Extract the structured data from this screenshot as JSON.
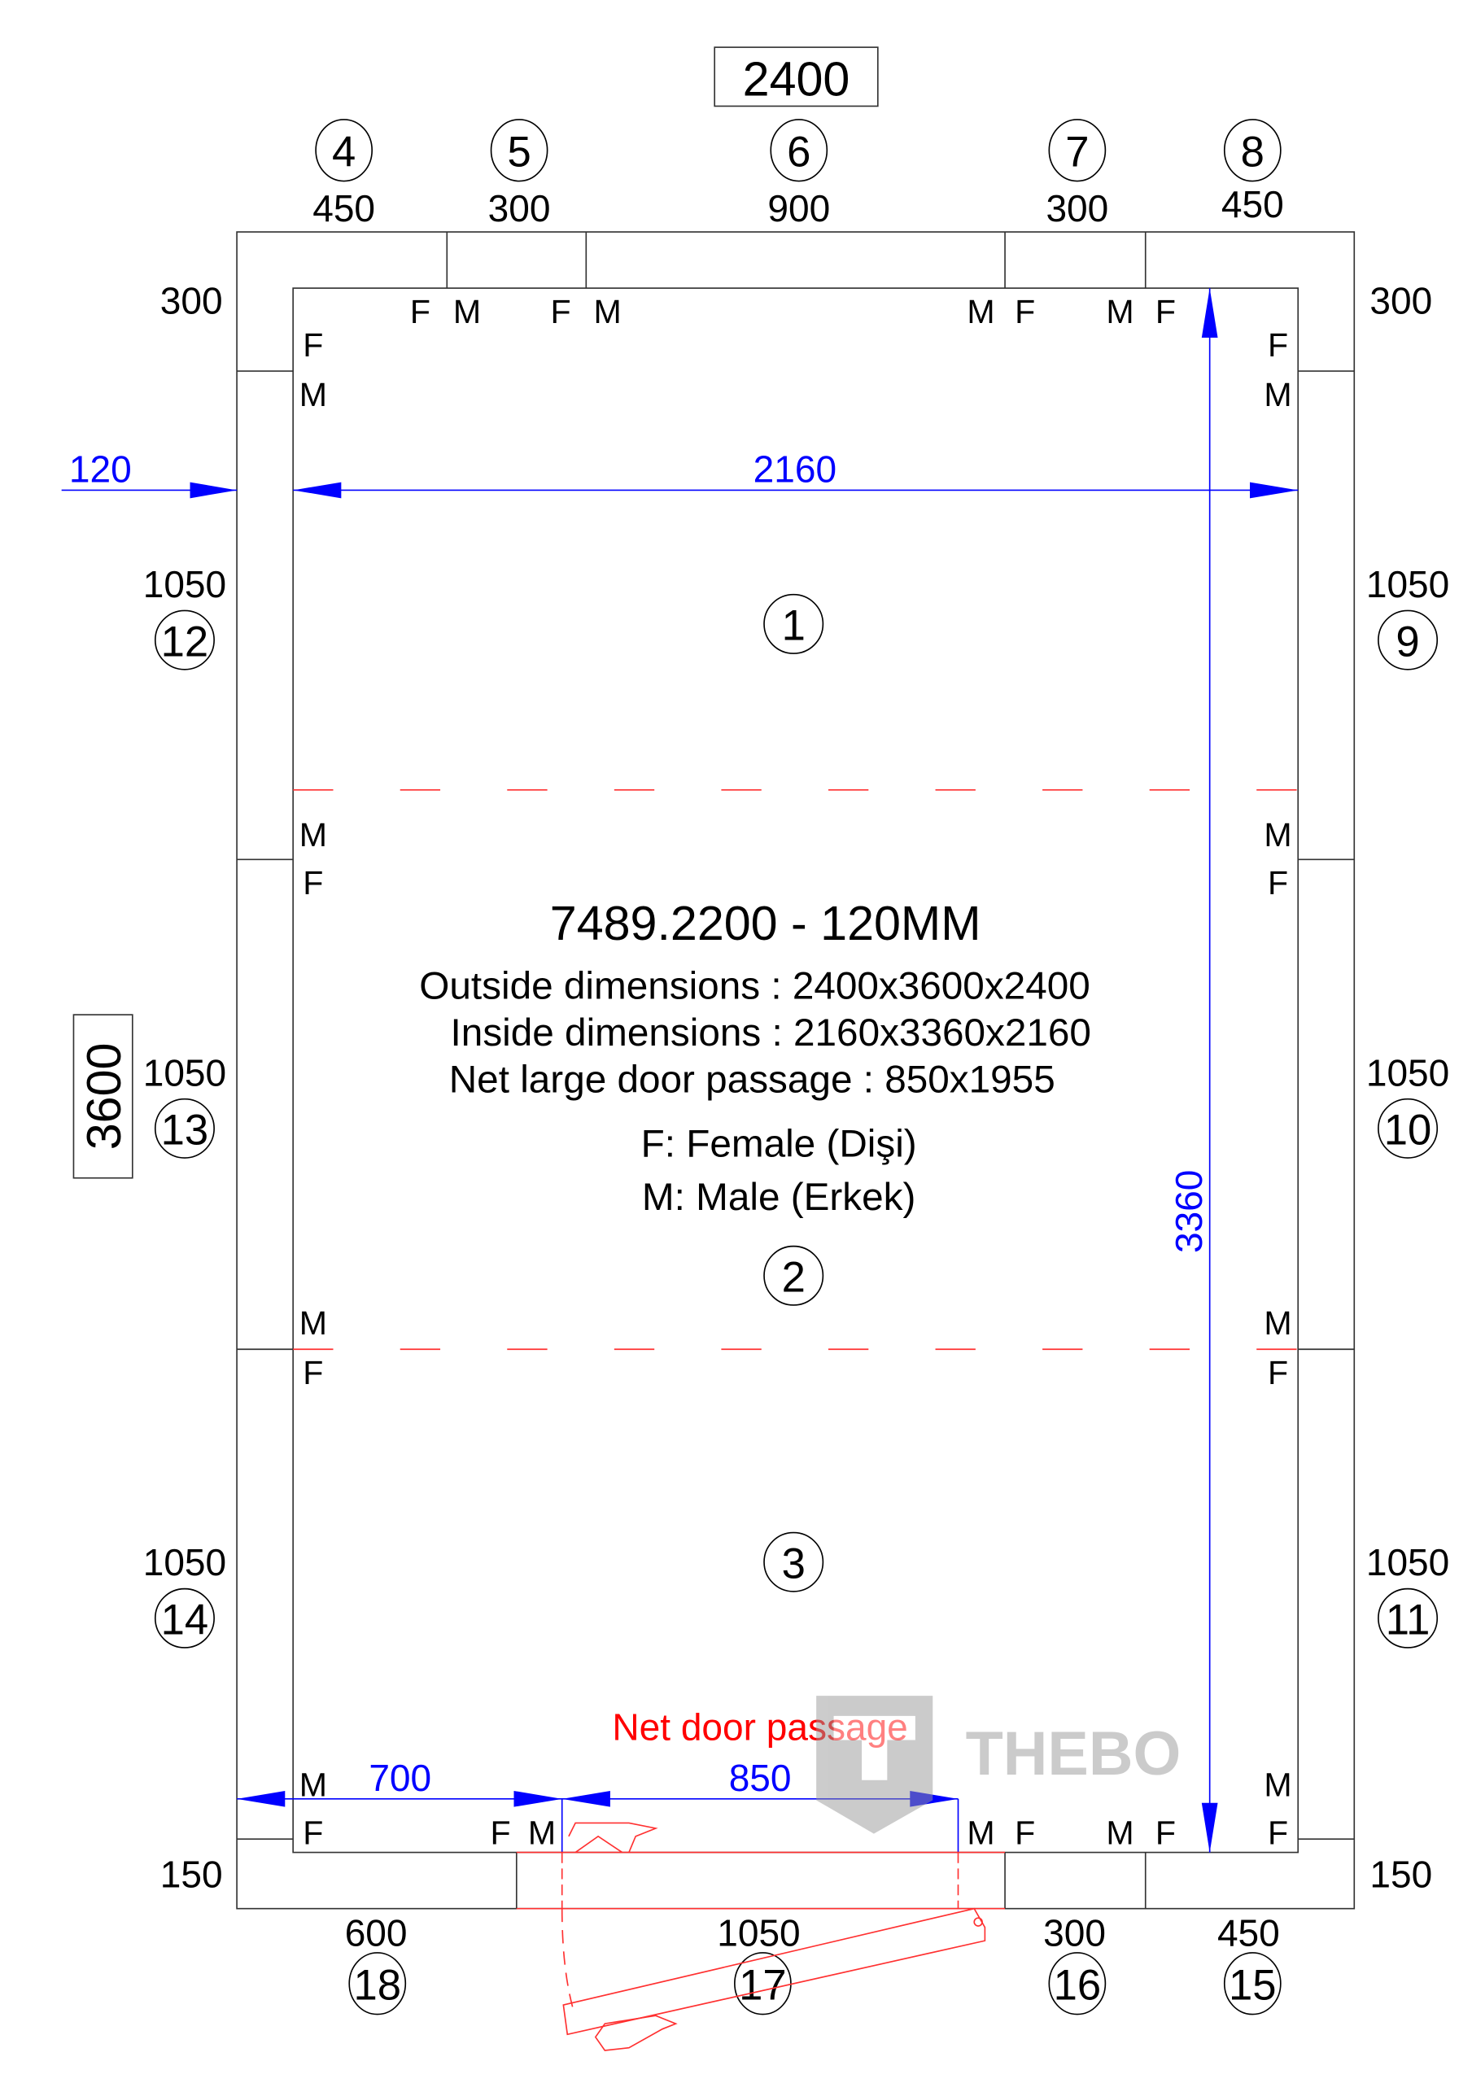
{
  "overall_width_label": "2400",
  "overall_depth_label": "3600",
  "top_panels": [
    {
      "id": "4",
      "width": "450"
    },
    {
      "id": "5",
      "width": "300"
    },
    {
      "id": "6",
      "width": "900"
    },
    {
      "id": "7",
      "width": "300"
    },
    {
      "id": "8",
      "width": "450"
    }
  ],
  "bottom_panels": [
    {
      "id": "18",
      "width": "600"
    },
    {
      "id": "17",
      "width": "1050"
    },
    {
      "id": "16",
      "width": "300"
    },
    {
      "id": "15",
      "width": "450"
    }
  ],
  "left_panels": [
    {
      "id": "12",
      "length": "1050"
    },
    {
      "id": "13",
      "length": "1050"
    },
    {
      "id": "14",
      "length": "1050"
    }
  ],
  "right_panels": [
    {
      "id": "9",
      "length": "1050"
    },
    {
      "id": "10",
      "length": "1050"
    },
    {
      "id": "11",
      "length": "1050"
    }
  ],
  "corner_labels": {
    "top_left": "300",
    "top_right": "300",
    "bottom_left": "150",
    "bottom_right": "150"
  },
  "floor_panels": [
    "1",
    "2",
    "3"
  ],
  "dimensions": {
    "wall_thickness": "120",
    "inside_width": "2160",
    "inside_depth": "3360",
    "door_offset": "700",
    "door_width": "850"
  },
  "info": {
    "title": "7489.2200 - 120MM",
    "outside": "Outside dimensions : 2400x3600x2400",
    "inside": "Inside dimensions : 2160x3360x2160",
    "door": "Net large door passage : 850x1955",
    "female": "F: Female (Dişi)",
    "male": "M: Male (Erkek)"
  },
  "door_label": "Net door passage",
  "joint_labels": {
    "female": "F",
    "male": "M"
  },
  "watermark": "THEBO",
  "colors": {
    "dimension": "#0000ff",
    "door": "#ff0000",
    "line": "#333333"
  }
}
